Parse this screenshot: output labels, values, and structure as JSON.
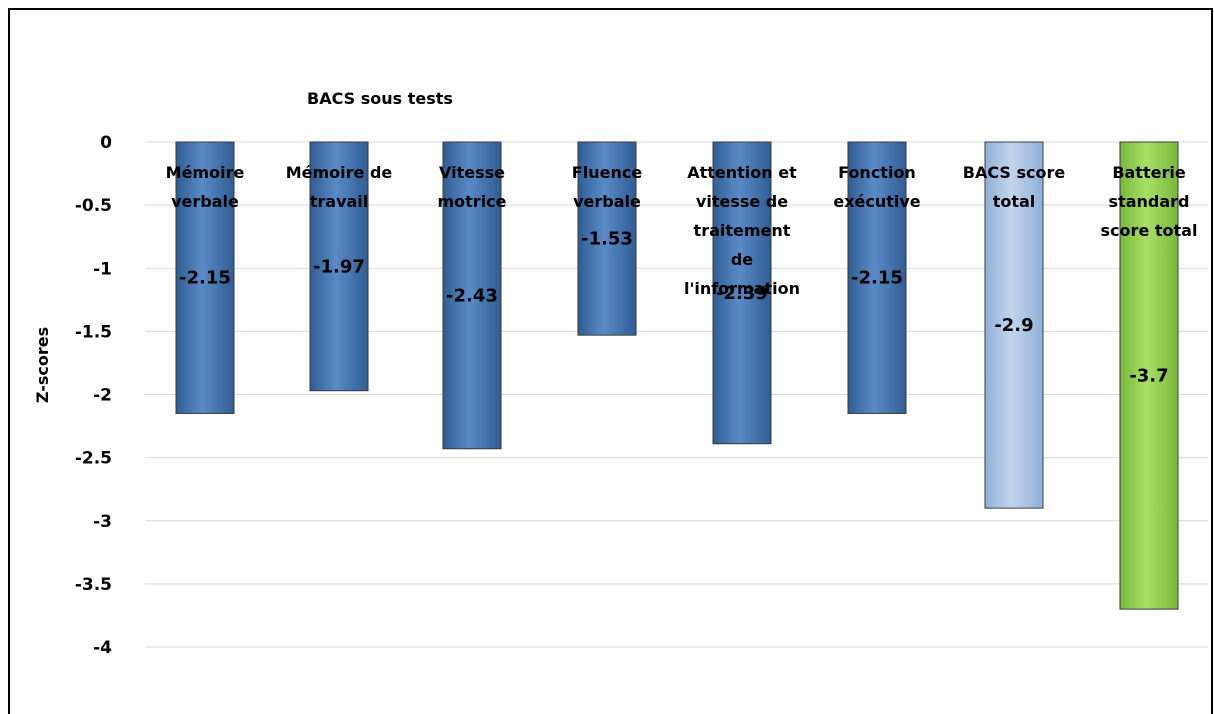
{
  "chart_data": {
    "type": "bar",
    "title": "BACS sous tests",
    "ylabel": "Z-scores",
    "xlabel": "",
    "ylim": [
      -4,
      0
    ],
    "yticks": [
      0,
      -0.5,
      -1,
      -1.5,
      -2,
      -2.5,
      -3,
      -3.5,
      -4
    ],
    "grid": true,
    "categories": [
      [
        "Mémoire",
        "verbale"
      ],
      [
        "Mémoire de",
        "travail"
      ],
      [
        "Vitesse",
        "motrice"
      ],
      [
        "Fluence",
        "verbale"
      ],
      [
        "Attention et",
        "vitesse de",
        "traitement",
        "de",
        "l'information"
      ],
      [
        "Fonction",
        "exécutive"
      ],
      [
        "BACS score",
        "total"
      ],
      [
        "Batterie",
        "standard",
        "score total"
      ]
    ],
    "values": [
      -2.15,
      -1.97,
      -2.43,
      -1.53,
      -2.39,
      -2.15,
      -2.9,
      -3.7
    ],
    "value_labels": [
      "-2.15",
      "-1.97",
      "-2.43",
      "-1.53",
      "-2.39",
      "-2.15",
      "-2.9",
      "-3.7"
    ],
    "colors": [
      "#4f81bd",
      "#4f81bd",
      "#4f81bd",
      "#4f81bd",
      "#4f81bd",
      "#4f81bd",
      "#a7c0e0",
      "#92d050"
    ]
  }
}
